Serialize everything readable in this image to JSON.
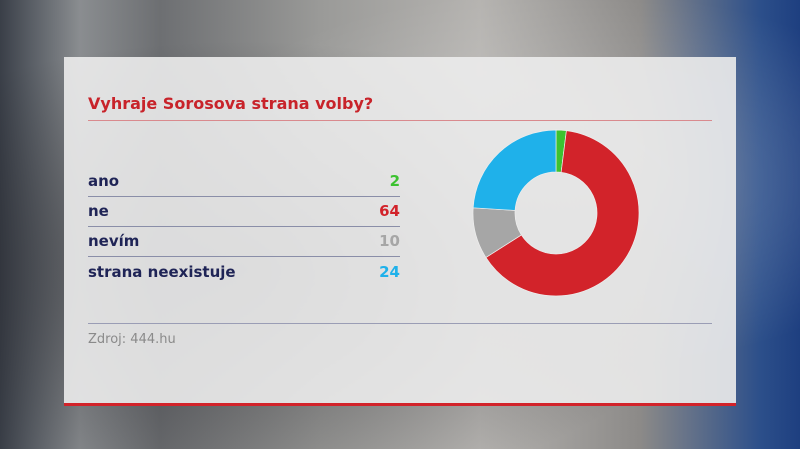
{
  "chart_data": {
    "type": "pie",
    "style": "donut",
    "title": "Vyhraje Sorosova strana volby?",
    "categories": [
      "ano",
      "ne",
      "nevím",
      "strana neexistuje"
    ],
    "values": [
      2,
      64,
      10,
      24
    ],
    "colors": [
      "#3cc230",
      "#d2232a",
      "#a6a6a6",
      "#1fb1ea"
    ],
    "source": "Zdroj: 444.hu",
    "legend": "left"
  }
}
